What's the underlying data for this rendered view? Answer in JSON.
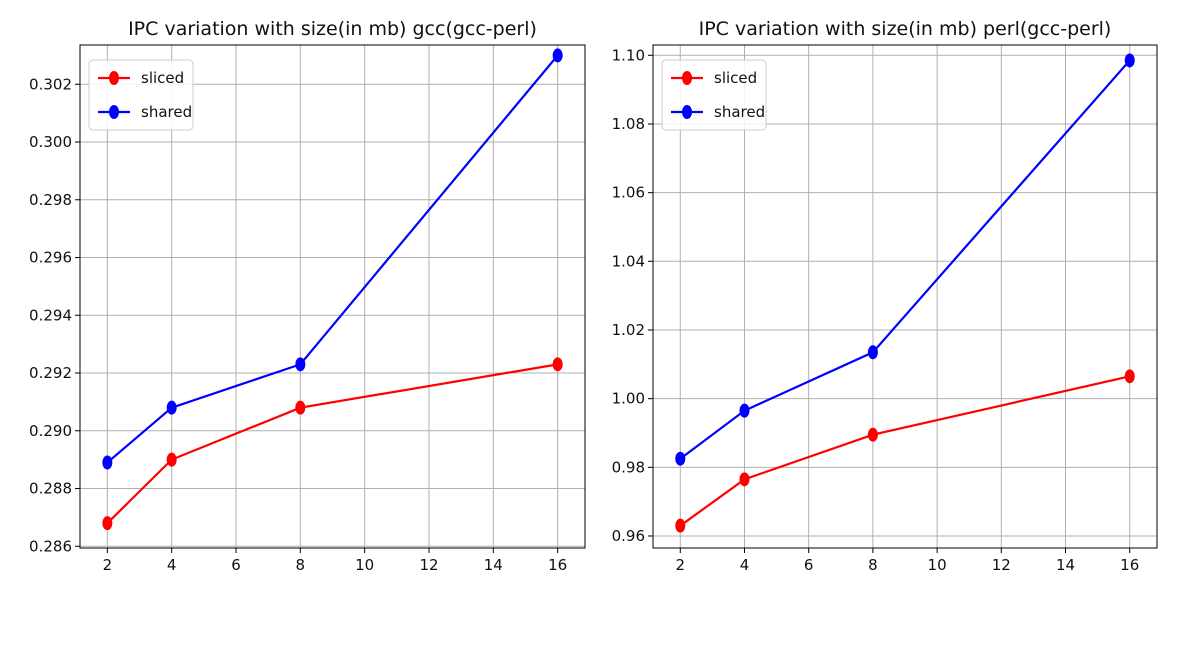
{
  "chart_data": [
    {
      "type": "line",
      "title": "IPC variation with size(in mb) gcc(gcc-perl)",
      "xlabel": "",
      "ylabel": "",
      "x": [
        2,
        4,
        8,
        16
      ],
      "series": [
        {
          "name": "sliced",
          "color": "#ff0000",
          "values": [
            0.2868,
            0.289,
            0.2908,
            0.2923
          ]
        },
        {
          "name": "shared",
          "color": "#0000ff",
          "values": [
            0.2889,
            0.2908,
            0.2923,
            0.303
          ]
        }
      ],
      "xlim": [
        1.15,
        16.85
      ],
      "ylim": [
        0.28594,
        0.30336
      ],
      "xticks": [
        2,
        4,
        6,
        8,
        10,
        12,
        14,
        16
      ],
      "yticks": [
        0.286,
        0.288,
        0.29,
        0.292,
        0.294,
        0.296,
        0.298,
        0.3,
        0.302
      ],
      "ytick_labels": [
        "0.286",
        "0.288",
        "0.290",
        "0.292",
        "0.294",
        "0.296",
        "0.298",
        "0.300",
        "0.302"
      ],
      "grid": true,
      "legend": "top-left"
    },
    {
      "type": "line",
      "title": "IPC variation with size(in mb) perl(gcc-perl)",
      "xlabel": "",
      "ylabel": "",
      "x": [
        2,
        4,
        8,
        16
      ],
      "series": [
        {
          "name": "sliced",
          "color": "#ff0000",
          "values": [
            0.963,
            0.9765,
            0.9895,
            1.0065
          ]
        },
        {
          "name": "shared",
          "color": "#0000ff",
          "values": [
            0.9825,
            0.9965,
            1.0135,
            1.0985
          ]
        }
      ],
      "xlim": [
        1.15,
        16.85
      ],
      "ylim": [
        0.9565,
        1.103
      ],
      "xticks": [
        2,
        4,
        6,
        8,
        10,
        12,
        14,
        16
      ],
      "yticks": [
        0.96,
        0.98,
        1.0,
        1.02,
        1.04,
        1.06,
        1.08,
        1.1
      ],
      "ytick_labels": [
        "0.96",
        "0.98",
        "1.00",
        "1.02",
        "1.04",
        "1.06",
        "1.08",
        "1.10"
      ],
      "grid": true,
      "legend": "top-left"
    }
  ]
}
